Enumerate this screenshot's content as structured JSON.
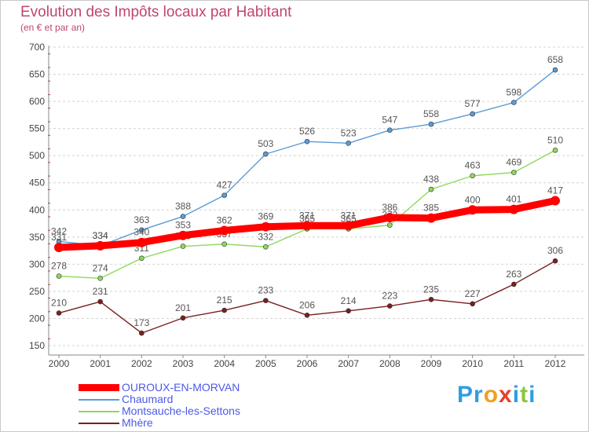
{
  "header": {
    "title": "Evolution des Impôts locaux par Habitant",
    "subtitle": "(en € et par an)"
  },
  "brand": {
    "letters": [
      "P",
      "r",
      "o",
      "x",
      "i",
      "t",
      "i"
    ],
    "colors": [
      "#2f9de0",
      "#2f9de0",
      "#f0a020",
      "#e83f2c",
      "#2f9de0",
      "#8cc63f",
      "#2f9de0"
    ]
  },
  "chart_data": {
    "type": "line",
    "title": "Evolution des Impôts locaux par Habitant",
    "subtitle": "(en € et par an)",
    "xlabel": "",
    "ylabel": "",
    "x": [
      "2000",
      "2001",
      "2002",
      "2003",
      "2004",
      "2005",
      "2006",
      "2007",
      "2008",
      "2009",
      "2010",
      "2011",
      "2012"
    ],
    "ylim": [
      150,
      700
    ],
    "yticks": [
      150,
      200,
      250,
      300,
      350,
      400,
      450,
      500,
      550,
      600,
      650,
      700
    ],
    "grid": "horizontal dashed",
    "legend_position": "bottom-left",
    "series": [
      {
        "name": "Mhère",
        "color": "#7a1e1e",
        "values": [
          210,
          231,
          173,
          201,
          215,
          233,
          206,
          214,
          223,
          235,
          227,
          263,
          306
        ]
      },
      {
        "name": "Montsauche-les-Settons",
        "color": "#8ed85a",
        "values": [
          278,
          274,
          311,
          333,
          337,
          332,
          365,
          365,
          372,
          438,
          463,
          469,
          510
        ]
      },
      {
        "name": "Chaumard",
        "color": "#5b9bd5",
        "values": [
          342,
          334,
          363,
          388,
          427,
          503,
          526,
          523,
          547,
          558,
          577,
          598,
          658
        ]
      },
      {
        "name": "OUROUX-EN-MORVAN",
        "color": "#ff0000",
        "values": [
          331,
          334,
          340,
          353,
          362,
          369,
          371,
          371,
          386,
          385,
          400,
          401,
          417
        ]
      }
    ]
  },
  "legend": {
    "items": [
      {
        "name": "OUROUX-EN-MORVAN",
        "color": "#ff0000"
      },
      {
        "name": "Chaumard",
        "color": "#5b9bd5"
      },
      {
        "name": "Montsauche-les-Settons",
        "color": "#8ed85a"
      },
      {
        "name": "Mhère",
        "color": "#7a1e1e"
      }
    ]
  }
}
